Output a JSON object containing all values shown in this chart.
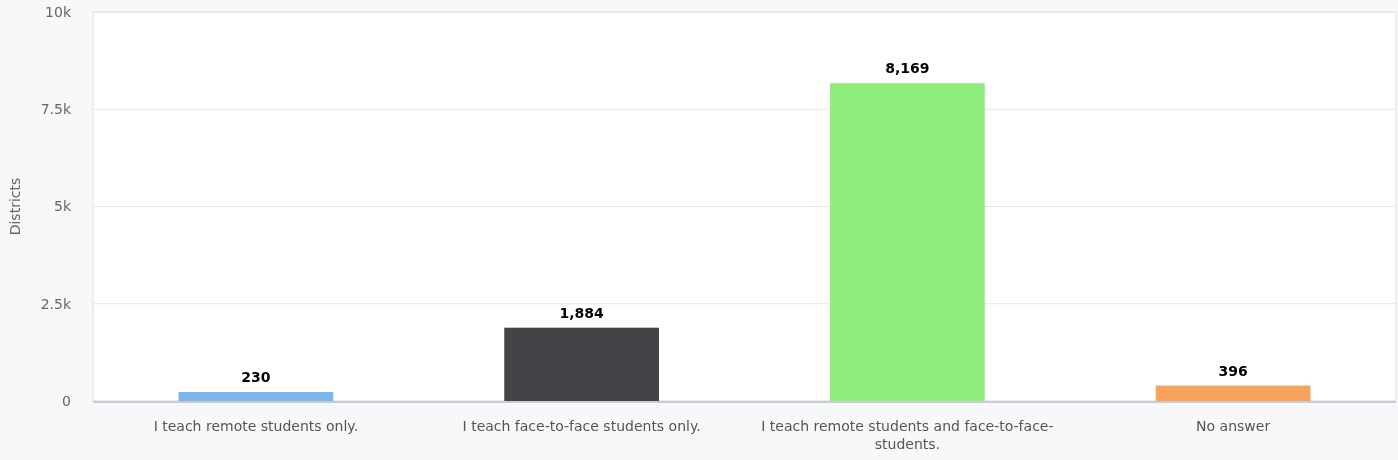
{
  "chart_data": {
    "type": "bar",
    "ylabel": "Districts",
    "categories": [
      "I teach remote students only.",
      "I teach face-to-face students only.",
      "I teach remote students and face-to-face-students.",
      "No answer"
    ],
    "values": [
      230,
      1884,
      8169,
      396
    ],
    "colors": [
      "#7cb5ec",
      "#434348",
      "#90ed7d",
      "#f7a35c"
    ],
    "value_labels": [
      "230",
      "1,884",
      "8,169",
      "396"
    ],
    "ylim": [
      0,
      10000
    ],
    "yticks": [
      0,
      {
        "value": 2500,
        "label": "2.5k"
      },
      {
        "value": 5000,
        "label": "5k"
      },
      {
        "value": 7500,
        "label": "7.5k"
      },
      {
        "value": 10000,
        "label": "10k"
      }
    ],
    "grid": "y"
  }
}
